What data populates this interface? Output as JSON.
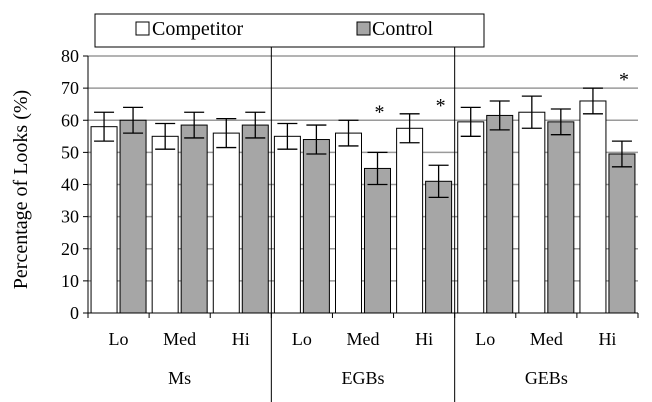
{
  "chart_data": {
    "type": "bar",
    "title": "",
    "xlabel": "",
    "ylabel": "Percentage of Looks (%)",
    "ylim": [
      0,
      80
    ],
    "yticks": [
      0,
      10,
      20,
      30,
      40,
      50,
      60,
      70,
      80
    ],
    "grid": true,
    "legend": "top-center",
    "groups": [
      {
        "name": "Ms",
        "categories": [
          "Lo",
          "Med",
          "Hi"
        ]
      },
      {
        "name": "EGBs",
        "categories": [
          "Lo",
          "Med",
          "Hi"
        ]
      },
      {
        "name": "GEBs",
        "categories": [
          "Lo",
          "Med",
          "Hi"
        ]
      }
    ],
    "categories": [
      "Lo",
      "Med",
      "Hi",
      "Lo",
      "Med",
      "Hi",
      "Lo",
      "Med",
      "Hi"
    ],
    "series": [
      {
        "name": "Competitor",
        "color": "#ffffff",
        "values": [
          58,
          55,
          56,
          55,
          56,
          57.5,
          59.5,
          62.5,
          66
        ],
        "errors": [
          4.5,
          4,
          4.5,
          4,
          4,
          4.5,
          4.5,
          5,
          4
        ]
      },
      {
        "name": "Control",
        "color": "#a6a6a6",
        "values": [
          60,
          58.5,
          58.5,
          54,
          45,
          41,
          61.5,
          59.5,
          49.5
        ],
        "errors": [
          4,
          4,
          4,
          4.5,
          5,
          5,
          4.5,
          4,
          4
        ]
      }
    ],
    "annotations": [
      {
        "category_index": 4,
        "text": "*"
      },
      {
        "category_index": 5,
        "text": "*"
      },
      {
        "category_index": 8,
        "text": "*"
      }
    ]
  }
}
